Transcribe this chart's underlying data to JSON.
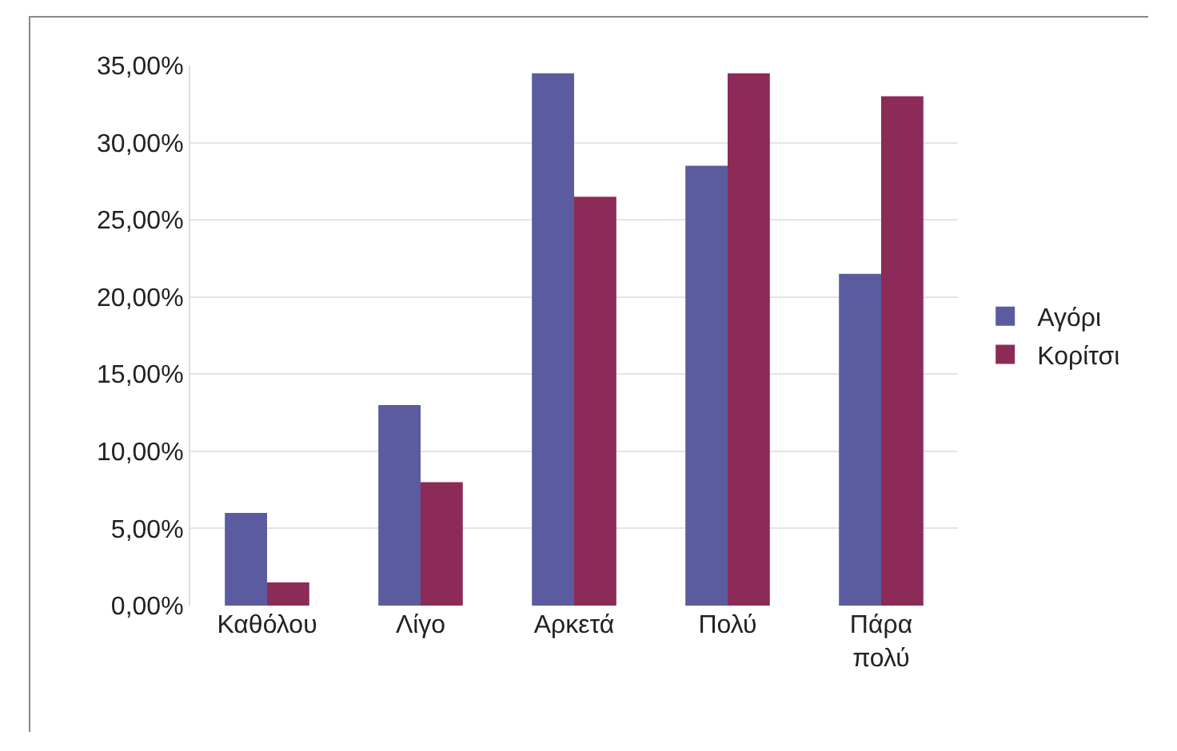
{
  "chart_data": {
    "type": "bar",
    "categories": [
      "Καθόλου",
      "Λίγο",
      "Αρκετά",
      "Πολύ",
      "Πάρα πολύ"
    ],
    "series": [
      {
        "name": "Αγόρι",
        "color": "#5b5b9f",
        "values": [
          6,
          13,
          34.5,
          28.5,
          21.5
        ]
      },
      {
        "name": "Κορίτσι",
        "color": "#8c2b57",
        "values": [
          1.5,
          8,
          26.5,
          34.5,
          33
        ]
      }
    ],
    "ylim": [
      0,
      35
    ],
    "yticks": [
      {
        "value": 0,
        "label": "0,00%"
      },
      {
        "value": 5,
        "label": "5,00%"
      },
      {
        "value": 10,
        "label": "10,00%"
      },
      {
        "value": 15,
        "label": "15,00%"
      },
      {
        "value": 20,
        "label": "20,00%"
      },
      {
        "value": 25,
        "label": "25,00%"
      },
      {
        "value": 30,
        "label": "30,00%"
      },
      {
        "value": 35,
        "label": "35,00%"
      }
    ],
    "grid": "y",
    "legend": "right"
  }
}
